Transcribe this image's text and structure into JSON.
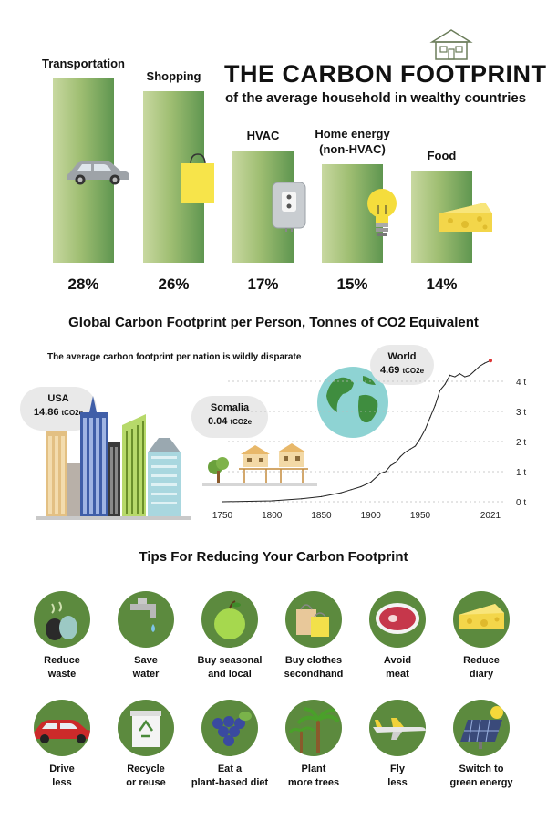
{
  "header": {
    "title": "THE CARBON FOOTPRINT",
    "subtitle": "of the average household in wealthy countries"
  },
  "chart_data": [
    {
      "type": "bar",
      "categories": [
        "Transportation",
        "Shopping",
        "HVAC",
        "Home energy (non-HVAC)",
        "Food"
      ],
      "values": [
        28,
        26,
        17,
        15,
        14
      ],
      "value_labels": [
        "28%",
        "26%",
        "17%",
        "15%",
        "14%"
      ],
      "title": "THE CARBON FOOTPRINT",
      "subtitle": "of the average household in wealthy countries",
      "ylim": [
        0,
        30
      ]
    },
    {
      "type": "line",
      "title": "Global Carbon Footprint per Person, Tonnes of CO2 Equivalent",
      "x": [
        1750,
        1800,
        1830,
        1850,
        1870,
        1880,
        1890,
        1900,
        1910,
        1915,
        1920,
        1925,
        1930,
        1935,
        1940,
        1945,
        1950,
        1955,
        1960,
        1965,
        1970,
        1975,
        1980,
        1985,
        1990,
        1995,
        2000,
        2005,
        2010,
        2015,
        2021
      ],
      "y": [
        0.0,
        0.03,
        0.1,
        0.17,
        0.3,
        0.4,
        0.5,
        0.65,
        0.95,
        1.0,
        1.2,
        1.3,
        1.5,
        1.65,
        1.75,
        1.85,
        2.1,
        2.4,
        2.8,
        3.2,
        3.7,
        3.9,
        4.2,
        4.15,
        4.25,
        4.15,
        4.2,
        4.35,
        4.5,
        4.6,
        4.69
      ],
      "xticks": [
        "1750",
        "1800",
        "1850",
        "1900",
        "1950",
        "2021"
      ],
      "yticks": [
        "0 t",
        "1 t",
        "2 t",
        "3 t",
        "4 t"
      ],
      "ylim": [
        0,
        5
      ],
      "xlim": [
        1750,
        2021
      ],
      "grid": true
    }
  ],
  "bars": {
    "labels": [
      "Transportation",
      "Shopping",
      "HVAC",
      "Home energy\n(non-HVAC)",
      "Food"
    ],
    "label_line1": [
      "Transportation",
      "Shopping",
      "HVAC",
      "Home energy",
      "Food"
    ],
    "label_line2": [
      "",
      "",
      "",
      "(non-HVAC)",
      ""
    ],
    "percents": [
      "28%",
      "26%",
      "17%",
      "15%",
      "14%"
    ]
  },
  "global": {
    "title": "Global Carbon Footprint per Person, Tonnes of CO2 Equivalent",
    "note": "The average carbon footprint per nation is wildly disparate",
    "usa_name": "USA",
    "usa_value": "14.86",
    "usa_unit": "tCO2e",
    "somalia_name": "Somalia",
    "somalia_value": "0.04",
    "somalia_unit": "tCO2e",
    "world_name": "World",
    "world_value": "4.69",
    "world_unit": "tCO2e"
  },
  "tips": {
    "title": "Tips For Reducing Your Carbon Footprint",
    "row1": [
      {
        "line1": "Reduce",
        "line2": "waste",
        "icon": "trash-bags-icon"
      },
      {
        "line1": "Save",
        "line2": "water",
        "icon": "faucet-icon"
      },
      {
        "line1": "Buy seasonal",
        "line2": "and local",
        "icon": "apple-icon"
      },
      {
        "line1": "Buy clothes",
        "line2": "secondhand",
        "icon": "shopping-bags-icon"
      },
      {
        "line1": "Avoid",
        "line2": "meat",
        "icon": "steak-icon"
      },
      {
        "line1": "Reduce",
        "line2": "diary",
        "icon": "cheese-icon"
      }
    ],
    "row2": [
      {
        "line1": "Drive",
        "line2": "less",
        "icon": "car-icon"
      },
      {
        "line1": "Recycle",
        "line2": "or reuse",
        "icon": "recycle-bin-icon"
      },
      {
        "line1": "Eat a",
        "line2": "plant-based diet",
        "icon": "grapes-icon"
      },
      {
        "line1": "Plant",
        "line2": "more trees",
        "icon": "palm-trees-icon"
      },
      {
        "line1": "Fly",
        "line2": "less",
        "icon": "airplane-icon"
      },
      {
        "line1": "Switch to",
        "line2": "green energy",
        "icon": "solar-panel-icon"
      }
    ]
  },
  "colors": {
    "accent_green": "#5c8a3e",
    "bar_dark": "#5f9650",
    "bar_light": "#c8d8a0",
    "cheese": "#f5d84a"
  }
}
